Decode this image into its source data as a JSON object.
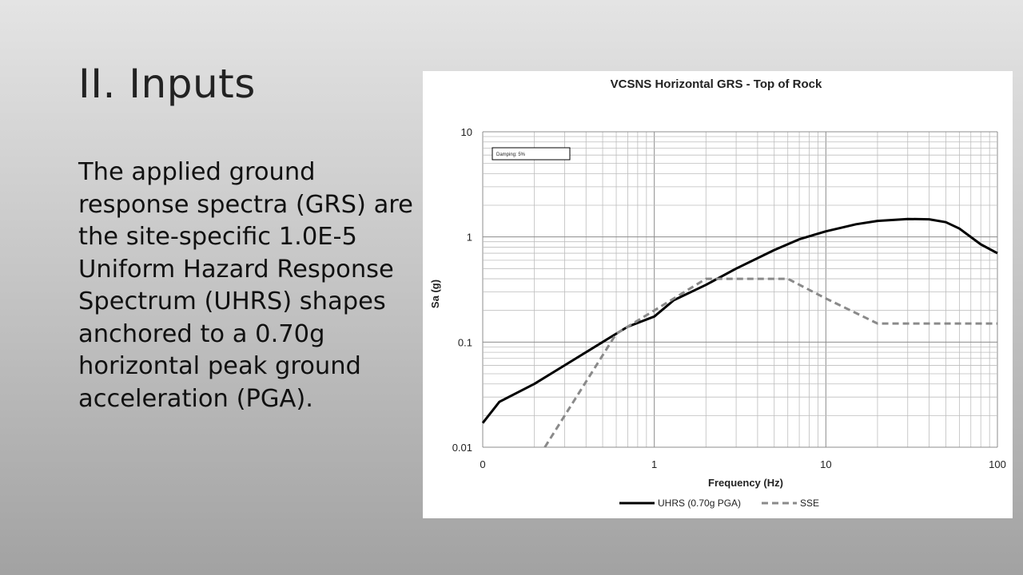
{
  "slide": {
    "title": "II. Inputs",
    "body": "The applied ground response spectra (GRS) are the site-specific  1.0E-5 Uniform Hazard Response Spectrum (UHRS) shapes anchored to a 0.70g horizontal peak ground acceleration (PGA)."
  },
  "chart_data": {
    "type": "line",
    "title": "VCSNS Horizontal GRS - Top of Rock",
    "xlabel": "Frequency (Hz)",
    "ylabel": "Sa (g)",
    "xscale": "log",
    "yscale": "log",
    "xlim": [
      0.1,
      100
    ],
    "ylim": [
      0.01,
      10
    ],
    "x_tick_labels": [
      "0",
      "1",
      "10",
      "100"
    ],
    "y_tick_labels": [
      "10",
      "1",
      "0.1",
      "0.01"
    ],
    "grid": true,
    "legend_position": "bottom",
    "annotation": "Damping: 5%",
    "series": [
      {
        "name": "UHRS (0.70g PGA)",
        "color": "#000000",
        "style": "solid",
        "x": [
          0.1,
          0.125,
          0.2,
          0.3,
          0.5,
          0.7,
          1.0,
          1.3,
          2.0,
          3.0,
          5.0,
          7.0,
          10,
          15,
          20,
          30,
          40,
          50,
          60,
          80,
          100
        ],
        "y": [
          0.017,
          0.027,
          0.04,
          0.06,
          0.1,
          0.14,
          0.175,
          0.25,
          0.35,
          0.5,
          0.75,
          0.95,
          1.13,
          1.32,
          1.42,
          1.48,
          1.47,
          1.38,
          1.2,
          0.85,
          0.7
        ]
      },
      {
        "name": "SSE",
        "color": "#8a8a8a",
        "style": "dashed",
        "x": [
          0.23,
          0.6,
          1.0,
          2.0,
          5.0,
          6.0,
          10,
          20,
          100
        ],
        "y": [
          0.01,
          0.12,
          0.2,
          0.4,
          0.4,
          0.4,
          0.26,
          0.15,
          0.15
        ]
      }
    ]
  }
}
